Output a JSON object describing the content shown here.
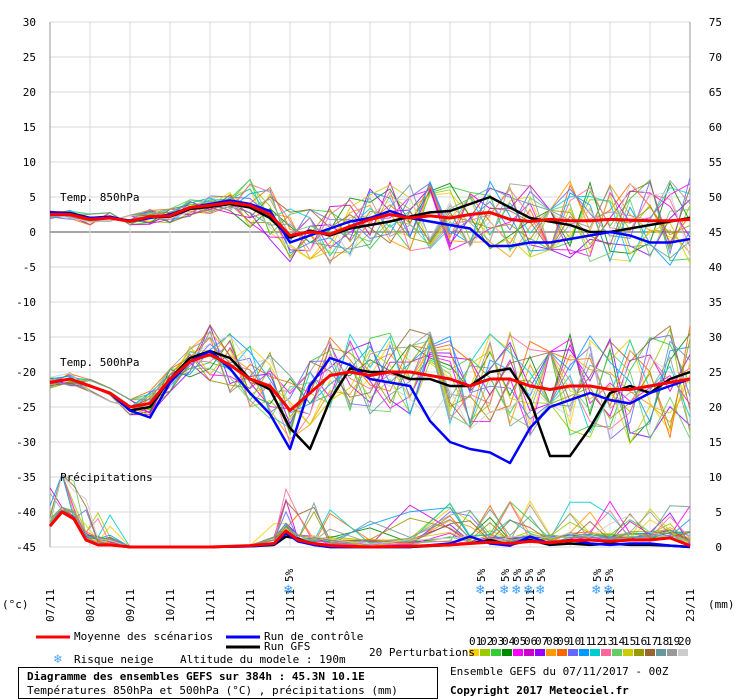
{
  "chart_data": {
    "type": "line",
    "x_dates": [
      "07/11",
      "08/11",
      "09/11",
      "10/11",
      "11/11",
      "12/11",
      "13/11",
      "14/11",
      "15/11",
      "16/11",
      "17/11",
      "18/11",
      "19/11",
      "20/11",
      "21/11",
      "22/11",
      "23/11"
    ],
    "y_left_ticks": [
      30,
      25,
      20,
      15,
      10,
      5,
      0,
      -5,
      -10,
      -15,
      -20,
      -25,
      -30,
      -35,
      -40,
      -45
    ],
    "y_right_ticks": [
      75,
      70,
      65,
      60,
      55,
      50,
      45,
      40,
      35,
      30,
      25,
      20,
      15,
      10,
      5,
      0
    ],
    "ylim_left": [
      -45,
      30
    ],
    "left_unit": "(°c)",
    "right_unit": "(mm)",
    "panels": [
      "Temp. 850hPa",
      "Temp. 500hPa",
      "Précipitations"
    ],
    "grid": true,
    "snow_label": "5%",
    "snow_markers_day": [
      6.0,
      10.8,
      11.4,
      11.7,
      12.0,
      12.3,
      13.7,
      14.0
    ],
    "series": [
      {
        "name": "Moyenne des scénarios",
        "color": "#ff0000",
        "panel": "t850",
        "x": [
          0,
          0.5,
          1,
          1.5,
          2,
          2.5,
          3,
          3.5,
          4,
          4.5,
          5,
          5.5,
          6,
          6.5,
          7,
          7.5,
          8,
          8.5,
          9,
          9.5,
          10,
          10.5,
          11,
          11.5,
          12,
          12.5,
          13,
          13.5,
          14,
          14.5,
          15,
          15.5,
          16
        ],
        "values": [
          2.5,
          2.5,
          1.8,
          2.0,
          1.5,
          2.2,
          2.3,
          3.5,
          3.8,
          4.2,
          3.8,
          2.5,
          -0.5,
          0.0,
          -0.3,
          0.8,
          1.8,
          2.5,
          2.0,
          2.3,
          2.0,
          2.5,
          2.8,
          1.8,
          1.5,
          1.8,
          1.6,
          1.6,
          1.8,
          1.7,
          1.6,
          1.6,
          1.8
        ]
      },
      {
        "name": "Run de contrôle",
        "color": "#0000ff",
        "panel": "t850",
        "x": [
          0,
          0.5,
          1,
          1.5,
          2,
          2.5,
          3,
          3.5,
          4,
          4.5,
          5,
          5.5,
          6,
          6.5,
          7,
          7.5,
          8,
          8.5,
          9,
          9.5,
          10,
          10.5,
          11,
          11.5,
          12,
          12.5,
          13,
          13.5,
          14,
          14.5,
          15,
          15.5,
          16
        ],
        "values": [
          2.8,
          2.6,
          2.0,
          2.2,
          1.5,
          2.0,
          2.5,
          3.5,
          4.0,
          4.5,
          4.0,
          3.0,
          -1.5,
          -0.5,
          0.5,
          1.5,
          2.0,
          3.0,
          2.0,
          1.5,
          1.0,
          0.5,
          -2.0,
          -2.0,
          -1.5,
          -1.5,
          -1.0,
          -0.5,
          0.0,
          -0.5,
          -1.5,
          -1.5,
          -1.0
        ]
      },
      {
        "name": "Run GFS",
        "color": "#000000",
        "panel": "t850",
        "x": [
          0,
          0.5,
          1,
          1.5,
          2,
          2.5,
          3,
          3.5,
          4,
          4.5,
          5,
          5.5,
          6,
          6.5,
          7,
          7.5,
          8,
          8.5,
          9,
          9.5,
          10,
          10.5,
          11,
          11.5,
          12,
          12.5,
          13,
          13.5,
          14,
          14.5,
          15,
          15.5,
          16
        ],
        "values": [
          2.8,
          2.7,
          2.0,
          2.0,
          1.6,
          2.1,
          2.2,
          3.3,
          3.6,
          4.0,
          3.5,
          2.0,
          -0.8,
          0.2,
          -0.5,
          0.5,
          1.0,
          1.5,
          2.2,
          2.8,
          3.0,
          4.0,
          5.0,
          3.5,
          2.0,
          1.5,
          1.0,
          0.0,
          0.0,
          0.5,
          1.0,
          1.5,
          2.0
        ]
      },
      {
        "name": "Moyenne des scénarios",
        "color": "#ff0000",
        "panel": "t500",
        "x": [
          0,
          0.5,
          1,
          1.5,
          2,
          2.5,
          3,
          3.5,
          4,
          4.5,
          5,
          5.5,
          6,
          6.5,
          7,
          7.5,
          8,
          8.5,
          9,
          9.5,
          10,
          10.5,
          11,
          11.5,
          12,
          12.5,
          13,
          13.5,
          14,
          14.5,
          15,
          15.5,
          16
        ],
        "values": [
          -21.5,
          -21.0,
          -22.0,
          -23.0,
          -25.0,
          -24.5,
          -21.0,
          -18.5,
          -17.5,
          -19.0,
          -21.0,
          -22.0,
          -25.5,
          -23.0,
          -20.5,
          -20.0,
          -20.5,
          -20.0,
          -20.0,
          -20.5,
          -21.0,
          -22.0,
          -21.0,
          -21.0,
          -22.0,
          -22.5,
          -22.0,
          -22.0,
          -22.5,
          -22.5,
          -22.0,
          -21.5,
          -21.0
        ]
      },
      {
        "name": "Run de contrôle",
        "color": "#0000ff",
        "panel": "t500",
        "x": [
          0,
          0.5,
          1,
          1.5,
          2,
          2.5,
          3,
          3.5,
          4,
          4.5,
          5,
          5.5,
          6,
          6.5,
          7,
          7.5,
          8,
          8.5,
          9,
          9.5,
          10,
          10.5,
          11,
          11.5,
          12,
          12.5,
          13,
          13.5,
          14,
          14.5,
          15,
          15.5,
          16
        ],
        "values": [
          -21.5,
          -21.0,
          -22.0,
          -23.0,
          -25.5,
          -26.5,
          -21.5,
          -18.5,
          -17.0,
          -19.5,
          -23.0,
          -26.0,
          -31.0,
          -22.0,
          -18.0,
          -19.0,
          -21.0,
          -21.5,
          -22.0,
          -27.0,
          -30.0,
          -31.0,
          -31.5,
          -33.0,
          -28.0,
          -25.0,
          -24.0,
          -23.0,
          -24.0,
          -24.5,
          -23.0,
          -22.0,
          -21.0
        ]
      },
      {
        "name": "Run GFS",
        "color": "#000000",
        "panel": "t500",
        "x": [
          0,
          0.5,
          1,
          1.5,
          2,
          2.5,
          3,
          3.5,
          4,
          4.5,
          5,
          5.5,
          6,
          6.5,
          7,
          7.5,
          8,
          8.5,
          9,
          9.5,
          10,
          10.5,
          11,
          11.5,
          12,
          12.5,
          13,
          13.5,
          14,
          14.5,
          15,
          15.5,
          16
        ],
        "values": [
          -21.5,
          -21.0,
          -22.0,
          -23.0,
          -25.5,
          -25.0,
          -21.0,
          -18.0,
          -17.0,
          -18.0,
          -21.0,
          -22.5,
          -28.0,
          -31.0,
          -24.0,
          -19.5,
          -20.0,
          -20.0,
          -21.0,
          -21.0,
          -22.0,
          -22.0,
          -20.0,
          -19.5,
          -24.0,
          -32.0,
          -32.0,
          -28.0,
          -23.0,
          -22.0,
          -23.0,
          -21.0,
          -20.0
        ]
      },
      {
        "name": "Moyenne des scénarios",
        "color": "#ff0000",
        "panel": "precip",
        "x": [
          0,
          0.3,
          0.6,
          0.9,
          1.2,
          1.5,
          2,
          3,
          4,
          5,
          5.6,
          5.9,
          6.2,
          6.6,
          7,
          8,
          9,
          10,
          10.5,
          11,
          11.5,
          12,
          12.5,
          13,
          13.5,
          14,
          14.5,
          15,
          15.5,
          16
        ],
        "values": [
          3,
          5,
          4,
          1,
          0.3,
          0.3,
          0,
          0,
          0,
          0.2,
          0.5,
          2.3,
          1,
          0.5,
          0.2,
          0,
          0.1,
          0.3,
          0.5,
          0.7,
          0.5,
          0.8,
          0.6,
          0.9,
          1,
          0.8,
          1,
          1,
          1.3,
          0.2
        ]
      },
      {
        "name": "Run de contrôle",
        "color": "#0000ff",
        "panel": "precip",
        "x": [
          0,
          0.3,
          0.6,
          0.9,
          1.2,
          1.5,
          2,
          3,
          4,
          5,
          5.6,
          5.9,
          6.2,
          6.6,
          7,
          8,
          9,
          10,
          10.5,
          11,
          11.5,
          12,
          12.5,
          13,
          13.5,
          14,
          14.5,
          15,
          15.5,
          16
        ],
        "values": [
          3,
          5,
          4,
          1,
          0.3,
          0.3,
          0,
          0,
          0,
          0.1,
          0.4,
          2,
          0.8,
          0.3,
          0,
          0,
          0,
          0.5,
          1.5,
          0.5,
          0.2,
          1.5,
          0.5,
          1,
          0.5,
          0.3,
          0.5,
          0.5,
          0.2,
          0
        ]
      },
      {
        "name": "Run GFS",
        "color": "#000000",
        "panel": "precip",
        "x": [
          0,
          0.3,
          0.6,
          0.9,
          1.2,
          1.5,
          2,
          3,
          4,
          5,
          5.6,
          5.9,
          6.2,
          6.6,
          7,
          8,
          9,
          10,
          10.5,
          11,
          11.5,
          12,
          12.5,
          13,
          13.5,
          14,
          14.5,
          15,
          15.5,
          16
        ],
        "values": [
          3,
          5,
          4,
          1,
          0.3,
          0.3,
          0,
          0,
          0,
          0.1,
          0.3,
          1.5,
          1.2,
          0.3,
          0,
          0,
          0,
          0.3,
          0.5,
          1,
          0.3,
          1,
          0.3,
          0.5,
          0.3,
          0.5,
          0.3,
          0.3,
          0.2,
          0
        ]
      }
    ]
  },
  "panel_labels": {
    "t850": "Temp. 850hPa",
    "t500": "Temp. 500hPa",
    "precip": "Précipitations"
  },
  "axis_units": {
    "left": "(°c)",
    "right": "(mm)"
  },
  "legend": {
    "mean": "Moyenne des scénarios",
    "control": "Run de contrôle",
    "gfs": "Run GFS",
    "snow": "Risque neige",
    "altitude": "Altitude du modele : 190m",
    "perturbations": "20 Perturbations",
    "perturbation_numbers": [
      "01",
      "02",
      "03",
      "04",
      "05",
      "06",
      "07",
      "08",
      "09",
      "10",
      "11",
      "12",
      "13",
      "14",
      "15",
      "16",
      "17",
      "18",
      "19",
      "20"
    ],
    "perturbation_colors": [
      "#ffcc00",
      "#99cc00",
      "#33cc33",
      "#008800",
      "#ff00ff",
      "#cc00cc",
      "#9900ff",
      "#ff9900",
      "#ff6600",
      "#6666ff",
      "#0099ff",
      "#00cccc",
      "#ff6699",
      "#66cc66",
      "#cccc00",
      "#999900",
      "#996633",
      "#669999",
      "#999999",
      "#cccccc"
    ]
  },
  "info": {
    "title": "Diagramme des ensembles GEFS sur 384h : 45.3N 10.1E",
    "subtitle": "Températures 850hPa et 500hPa (°C) , précipitations (mm)",
    "run": "Ensemble GEFS du 07/11/2017 - 00Z",
    "copyright": "Copyright 2017 Meteociel.fr"
  }
}
